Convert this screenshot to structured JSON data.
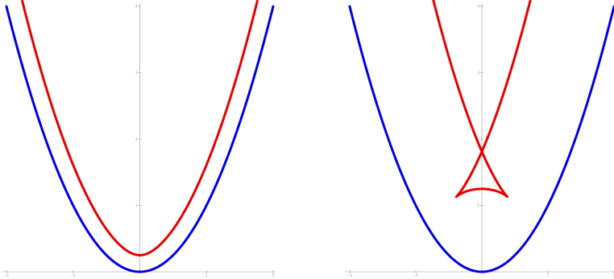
{
  "chart_data": [
    {
      "type": "line",
      "title": "",
      "xlabel": "",
      "ylabel": "",
      "xlim": [
        -2,
        2
      ],
      "ylim": [
        0,
        4
      ],
      "xticks": [
        -2,
        -1,
        1,
        2
      ],
      "yticks": [
        1,
        2,
        3,
        4
      ],
      "grid": false,
      "series": [
        {
          "color": "#0000e6",
          "kind": "parabola",
          "points": [
            [
              -2,
              4
            ],
            [
              -1.5,
              2.25
            ],
            [
              -1,
              1
            ],
            [
              -0.5,
              0.25
            ],
            [
              0,
              0
            ],
            [
              0.5,
              0.25
            ],
            [
              1,
              1
            ],
            [
              1.5,
              2.25
            ],
            [
              2,
              4
            ]
          ]
        },
        {
          "color": "#e60000",
          "kind": "offset_curve",
          "offset": 0.25,
          "points": [
            [
              -1.75,
              4.06
            ],
            [
              -1.3,
              2.5
            ],
            [
              -1,
              1.6
            ],
            [
              -0.5,
              0.6
            ],
            [
              0,
              0.25
            ],
            [
              0.5,
              0.6
            ],
            [
              1,
              1.6
            ],
            [
              1.3,
              2.5
            ],
            [
              1.75,
              4.06
            ]
          ]
        }
      ]
    },
    {
      "type": "line",
      "title": "",
      "xlabel": "",
      "ylabel": "",
      "xlim": [
        -2,
        2
      ],
      "ylim": [
        0,
        4
      ],
      "xticks": [
        -2,
        -1,
        1,
        2
      ],
      "yticks": [
        1,
        2,
        3,
        4
      ],
      "grid": false,
      "series": [
        {
          "color": "#0000e6",
          "kind": "parabola",
          "points": [
            [
              -2,
              4
            ],
            [
              -1.5,
              2.25
            ],
            [
              -1,
              1
            ],
            [
              -0.5,
              0.25
            ],
            [
              0,
              0
            ],
            [
              0.5,
              0.25
            ],
            [
              1,
              1
            ],
            [
              1.5,
              2.25
            ],
            [
              2,
              4
            ]
          ]
        },
        {
          "color": "#e60000",
          "kind": "offset_curve",
          "offset": 1.25,
          "points": [
            [
              -1,
              4.1
            ],
            [
              -0.6,
              2.5
            ],
            [
              0,
              1.25
            ],
            [
              0.22,
              0.95
            ],
            [
              0,
              1
            ],
            [
              -0.22,
              0.95
            ],
            [
              0,
              1.25
            ],
            [
              0.6,
              2.5
            ],
            [
              1,
              4.1
            ]
          ]
        }
      ]
    }
  ]
}
